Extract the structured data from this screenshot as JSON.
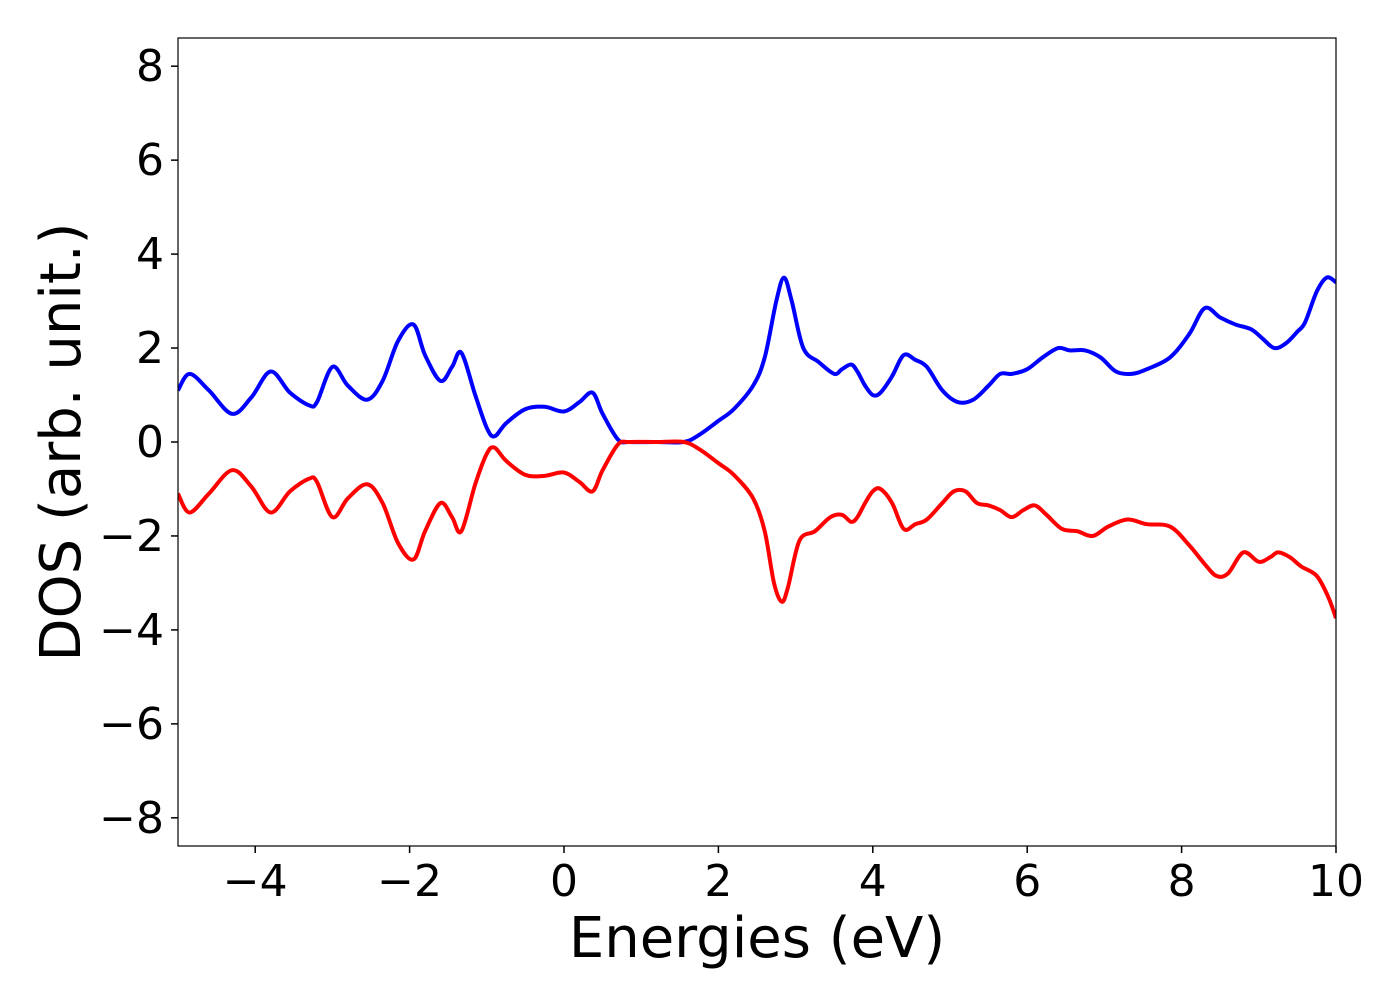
{
  "chart_data": {
    "type": "line",
    "title": "",
    "xlabel": "Energies (eV)",
    "ylabel": "DOS (arb. unit.)",
    "xlim": [
      -5,
      10
    ],
    "ylim": [
      -8.6,
      8.6
    ],
    "xticks": [
      -4,
      -2,
      0,
      2,
      4,
      6,
      8,
      10
    ],
    "yticks": [
      -8,
      -6,
      -4,
      -2,
      0,
      2,
      4,
      6,
      8
    ],
    "grid": false,
    "legend": "none",
    "series": [
      {
        "color": "#0000ff",
        "x": [
          -5.0,
          -4.85,
          -4.6,
          -4.3,
          -4.05,
          -3.8,
          -3.55,
          -3.3,
          -3.2,
          -3.0,
          -2.8,
          -2.55,
          -2.35,
          -2.15,
          -1.95,
          -1.8,
          -1.6,
          -1.45,
          -1.33,
          -1.15,
          -1.0,
          -0.9,
          -0.75,
          -0.5,
          -0.25,
          0.0,
          0.2,
          0.37,
          0.5,
          0.7,
          0.85,
          1.2,
          1.55,
          1.75,
          2.0,
          2.2,
          2.45,
          2.6,
          2.75,
          2.85,
          2.95,
          3.1,
          3.3,
          3.5,
          3.6,
          3.72,
          3.8,
          3.9,
          4.0,
          4.1,
          4.25,
          4.4,
          4.55,
          4.7,
          4.9,
          5.1,
          5.3,
          5.5,
          5.65,
          5.8,
          6.0,
          6.2,
          6.4,
          6.55,
          6.75,
          6.95,
          7.15,
          7.35,
          7.55,
          7.85,
          8.1,
          8.3,
          8.5,
          8.7,
          8.9,
          9.05,
          9.2,
          9.35,
          9.5,
          9.6,
          9.75,
          9.88,
          10.0
        ],
        "y": [
          1.1,
          1.45,
          1.1,
          0.6,
          0.95,
          1.5,
          1.05,
          0.78,
          0.85,
          1.6,
          1.2,
          0.9,
          1.3,
          2.15,
          2.5,
          1.85,
          1.3,
          1.6,
          1.9,
          1.0,
          0.3,
          0.12,
          0.4,
          0.7,
          0.75,
          0.65,
          0.85,
          1.05,
          0.6,
          0.05,
          0.0,
          0.0,
          0.0,
          0.15,
          0.45,
          0.7,
          1.2,
          1.8,
          3.0,
          3.5,
          3.0,
          2.0,
          1.7,
          1.45,
          1.55,
          1.65,
          1.5,
          1.2,
          1.0,
          1.05,
          1.4,
          1.85,
          1.75,
          1.6,
          1.1,
          0.85,
          0.9,
          1.2,
          1.45,
          1.45,
          1.55,
          1.8,
          2.0,
          1.95,
          1.95,
          1.8,
          1.5,
          1.45,
          1.55,
          1.8,
          2.3,
          2.85,
          2.65,
          2.5,
          2.4,
          2.2,
          2.0,
          2.1,
          2.35,
          2.55,
          3.2,
          3.5,
          3.4
        ]
      },
      {
        "color": "#ff0000",
        "x": [
          -5.0,
          -4.85,
          -4.6,
          -4.3,
          -4.05,
          -3.8,
          -3.55,
          -3.3,
          -3.2,
          -3.0,
          -2.8,
          -2.55,
          -2.35,
          -2.15,
          -1.95,
          -1.8,
          -1.6,
          -1.45,
          -1.33,
          -1.15,
          -1.0,
          -0.9,
          -0.75,
          -0.5,
          -0.25,
          0.0,
          0.2,
          0.37,
          0.5,
          0.7,
          0.85,
          1.2,
          1.55,
          1.75,
          2.0,
          2.2,
          2.45,
          2.6,
          2.72,
          2.82,
          2.9,
          3.05,
          3.25,
          3.45,
          3.6,
          3.72,
          3.8,
          3.9,
          4.0,
          4.1,
          4.25,
          4.4,
          4.55,
          4.7,
          4.9,
          5.05,
          5.2,
          5.35,
          5.5,
          5.65,
          5.8,
          5.95,
          6.1,
          6.25,
          6.45,
          6.65,
          6.85,
          7.05,
          7.3,
          7.55,
          7.85,
          8.1,
          8.3,
          8.45,
          8.6,
          8.8,
          9.0,
          9.15,
          9.25,
          9.4,
          9.55,
          9.75,
          9.9,
          10.0
        ],
        "y": [
          -1.1,
          -1.5,
          -1.1,
          -0.6,
          -0.95,
          -1.5,
          -1.05,
          -0.78,
          -0.85,
          -1.6,
          -1.2,
          -0.9,
          -1.3,
          -2.15,
          -2.5,
          -1.9,
          -1.3,
          -1.6,
          -1.9,
          -0.9,
          -0.25,
          -0.12,
          -0.4,
          -0.7,
          -0.72,
          -0.65,
          -0.85,
          -1.05,
          -0.6,
          -0.05,
          0.0,
          0.0,
          0.0,
          -0.15,
          -0.45,
          -0.7,
          -1.2,
          -1.9,
          -3.0,
          -3.4,
          -3.1,
          -2.1,
          -1.9,
          -1.6,
          -1.55,
          -1.7,
          -1.6,
          -1.3,
          -1.05,
          -1.0,
          -1.3,
          -1.85,
          -1.75,
          -1.65,
          -1.3,
          -1.05,
          -1.05,
          -1.3,
          -1.35,
          -1.45,
          -1.6,
          -1.45,
          -1.35,
          -1.55,
          -1.85,
          -1.9,
          -2.0,
          -1.8,
          -1.65,
          -1.75,
          -1.8,
          -2.2,
          -2.6,
          -2.85,
          -2.8,
          -2.35,
          -2.55,
          -2.45,
          -2.35,
          -2.45,
          -2.65,
          -2.85,
          -3.3,
          -3.75
        ]
      }
    ]
  }
}
